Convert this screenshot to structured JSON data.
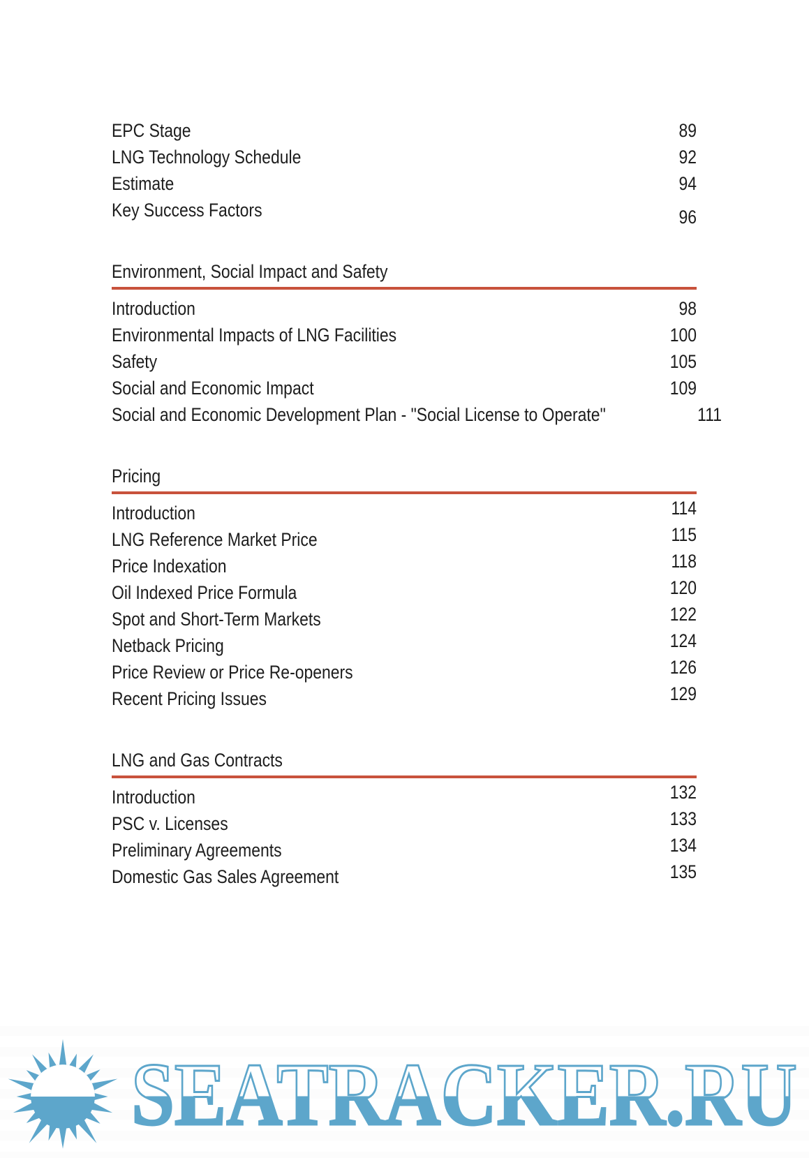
{
  "colors": {
    "heading_underline": "#c8523c",
    "text": "#1d1d1d",
    "watermark_blue": "#5da6cb",
    "page_background": "#ffffff"
  },
  "toc": {
    "sections": [
      {
        "id": "continued",
        "heading": null,
        "items": [
          {
            "label": "EPC Stage",
            "page": "89"
          },
          {
            "label": "LNG Technology Schedule",
            "page": "92"
          },
          {
            "label": "Estimate",
            "page": "94"
          },
          {
            "label": "Key Success Factors",
            "page": "96"
          }
        ]
      },
      {
        "id": "environment-social-impact-and-safety",
        "heading": "Environment, Social Impact and Safety",
        "items": [
          {
            "label": "Introduction",
            "page": "98"
          },
          {
            "label": "Environmental Impacts of LNG Facilities",
            "page": "100"
          },
          {
            "label": "Safety",
            "page": "105"
          },
          {
            "label": "Social and Economic Impact",
            "page": "109"
          },
          {
            "label": "Social and Economic Development Plan - \"Social License to Operate\"",
            "page": "111"
          }
        ]
      },
      {
        "id": "pricing",
        "heading": "Pricing",
        "items": [
          {
            "label": "Introduction",
            "page": "114"
          },
          {
            "label": "LNG Reference Market Price",
            "page": "115"
          },
          {
            "label": "Price Indexation",
            "page": "118"
          },
          {
            "label": "Oil Indexed Price Formula",
            "page": "120"
          },
          {
            "label": "Spot and Short-Term Markets",
            "page": "122"
          },
          {
            "label": "Netback Pricing",
            "page": "124"
          },
          {
            "label": "Price Review or Price Re-openers",
            "page": "126"
          },
          {
            "label": "Recent Pricing Issues",
            "page": "129"
          }
        ]
      },
      {
        "id": "lng-and-gas-contracts",
        "heading": "LNG and Gas Contracts",
        "items": [
          {
            "label": "Introduction",
            "page": "132"
          },
          {
            "label": "PSC v. Licenses",
            "page": "133"
          },
          {
            "label": "Preliminary Agreements",
            "page": "134"
          },
          {
            "label": "Domestic Gas Sales Agreement",
            "page": "135"
          }
        ]
      }
    ]
  },
  "watermark": {
    "text": "SEATRACKER.RU",
    "icon": "sun-icon"
  }
}
